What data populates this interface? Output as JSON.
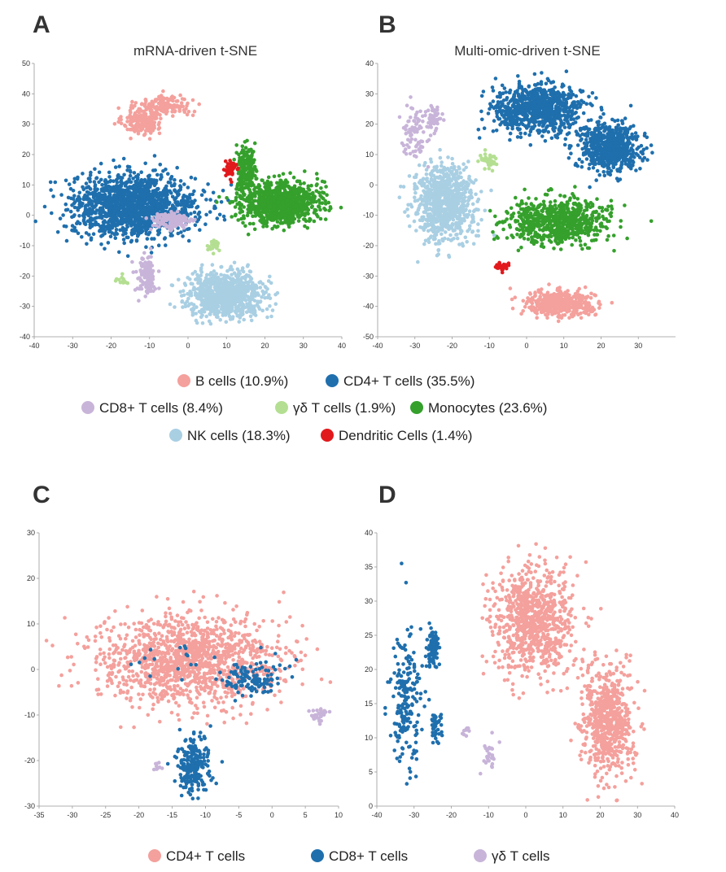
{
  "legend_top": [
    {
      "label": "B cells (10.9%)",
      "color": "#f4a09c"
    },
    {
      "label": "CD4+ T cells (35.5%)",
      "color": "#1f6fad"
    },
    {
      "label": "CD8+ T cells  (8.4%)",
      "color": "#c8b4d9"
    },
    {
      "label": "γδ T cells (1.9%)",
      "color": "#b4df92"
    },
    {
      "label": "Monocytes (23.6%)",
      "color": "#35a02c"
    },
    {
      "label": "NK cells (18.3%)",
      "color": "#a9cfe3"
    },
    {
      "label": "Dendritic Cells (1.4%)",
      "color": "#e2191c"
    }
  ],
  "legend_bottom": [
    {
      "label": "CD4+ T cells",
      "color": "#f4a09c"
    },
    {
      "label": "CD8+ T cells",
      "color": "#1f6fad"
    },
    {
      "label": "γδ T cells",
      "color": "#c8b4d9"
    }
  ],
  "chart_data": [
    {
      "panel": "A",
      "title": "mRNA-driven t-SNE",
      "type": "scatter",
      "xlim": [
        -40,
        40
      ],
      "ylim": [
        -40,
        50
      ],
      "xticks": [
        -40,
        -30,
        -20,
        -10,
        0,
        10,
        20,
        30,
        40
      ],
      "yticks": [
        -40,
        -30,
        -20,
        -10,
        0,
        10,
        20,
        30,
        40,
        50
      ],
      "clusters": [
        {
          "name": "B cells (10.9%)",
          "color": "#f4a09c",
          "n": 180,
          "cx": -12,
          "cy": 31,
          "sx": 2.5,
          "sy": 2.2
        },
        {
          "name": "B cells (10.9%)",
          "color": "#f4a09c",
          "n": 150,
          "cx": -6,
          "cy": 36,
          "sx": 3.5,
          "sy": 1.8
        },
        {
          "name": "CD4+ T cells (35.5%)",
          "color": "#1f6fad",
          "n": 1500,
          "cx": -14,
          "cy": 3,
          "sx": 8,
          "sy": 5
        },
        {
          "name": "CD8+ T cells  (8.4%)",
          "color": "#c8b4d9",
          "n": 120,
          "cx": -4,
          "cy": -2,
          "sx": 3,
          "sy": 1.5
        },
        {
          "name": "CD8+ T cells  (8.4%)",
          "color": "#c8b4d9",
          "n": 120,
          "cx": -11,
          "cy": -20,
          "sx": 1.3,
          "sy": 3.5
        },
        {
          "name": "γδ T cells (1.9%)",
          "color": "#b4df92",
          "n": 25,
          "cx": 7,
          "cy": -10,
          "sx": 0.8,
          "sy": 0.8
        },
        {
          "name": "γδ T cells (1.9%)",
          "color": "#b4df92",
          "n": 12,
          "cx": -17,
          "cy": -21,
          "sx": 0.6,
          "sy": 0.6
        },
        {
          "name": "Monocytes (23.6%)",
          "color": "#35a02c",
          "n": 900,
          "cx": 24,
          "cy": 4,
          "sx": 5,
          "sy": 3.5
        },
        {
          "name": "Monocytes (23.6%)",
          "color": "#35a02c",
          "n": 200,
          "cx": 15,
          "cy": 15,
          "sx": 1.2,
          "sy": 4
        },
        {
          "name": "NK cells (18.3%)",
          "color": "#a9cfe3",
          "n": 900,
          "cx": 10,
          "cy": -26,
          "sx": 5,
          "sy": 3.5
        },
        {
          "name": "Dendritic Cells (1.4%)",
          "color": "#e2191c",
          "n": 40,
          "cx": 11,
          "cy": 15,
          "sx": 0.8,
          "sy": 1.2
        }
      ]
    },
    {
      "panel": "B",
      "title": "Multi-omic-driven t-SNE",
      "type": "scatter",
      "xlim": [
        -40,
        40
      ],
      "ylim": [
        -50,
        40
      ],
      "xticks": [
        -40,
        -30,
        -20,
        -10,
        0,
        10,
        20,
        30
      ],
      "yticks": [
        -50,
        -40,
        -30,
        -20,
        -10,
        0,
        10,
        20,
        30,
        40
      ],
      "clusters": [
        {
          "name": "B cells (10.9%)",
          "color": "#f4a09c",
          "n": 450,
          "cx": 9,
          "cy": -39,
          "sx": 4.5,
          "sy": 2
        },
        {
          "name": "CD4+ T cells (35.5%)",
          "color": "#1f6fad",
          "n": 800,
          "cx": 3,
          "cy": 25,
          "sx": 6,
          "sy": 4
        },
        {
          "name": "CD4+ T cells (35.5%)",
          "color": "#1f6fad",
          "n": 650,
          "cx": 22,
          "cy": 12,
          "sx": 4,
          "sy": 4
        },
        {
          "name": "CD8+ T cells  (8.4%)",
          "color": "#c8b4d9",
          "n": 80,
          "cx": -30,
          "cy": 17,
          "sx": 2,
          "sy": 4
        },
        {
          "name": "CD8+ T cells  (8.4%)",
          "color": "#c8b4d9",
          "n": 50,
          "cx": -25,
          "cy": 22,
          "sx": 1,
          "sy": 2
        },
        {
          "name": "γδ T cells (1.9%)",
          "color": "#b4df92",
          "n": 40,
          "cx": -10,
          "cy": 8,
          "sx": 1.2,
          "sy": 1.5
        },
        {
          "name": "Monocytes (23.6%)",
          "color": "#35a02c",
          "n": 700,
          "cx": 8,
          "cy": -12,
          "sx": 7,
          "sy": 3.5
        },
        {
          "name": "NK cells (18.3%)",
          "color": "#a9cfe3",
          "n": 800,
          "cx": -22,
          "cy": -6,
          "sx": 4,
          "sy": 6
        },
        {
          "name": "Dendritic Cells (1.4%)",
          "color": "#e2191c",
          "n": 35,
          "cx": -7,
          "cy": -27,
          "sx": 0.9,
          "sy": 0.8
        }
      ]
    },
    {
      "panel": "C",
      "type": "scatter",
      "xlim": [
        -35,
        10
      ],
      "ylim": [
        -30,
        30
      ],
      "xticks": [
        -35,
        -30,
        -25,
        -20,
        -15,
        -10,
        -5,
        0,
        5,
        10
      ],
      "yticks": [
        -30,
        -20,
        -10,
        0,
        10,
        20,
        30
      ],
      "clusters": [
        {
          "name": "CD4+ T cells",
          "color": "#f4a09c",
          "n": 1300,
          "cx": -13,
          "cy": 2,
          "sx": 7,
          "sy": 5
        },
        {
          "name": "CD8+ T cells",
          "color": "#1f6fad",
          "n": 120,
          "cx": -3,
          "cy": -2,
          "sx": 2.5,
          "sy": 1.8
        },
        {
          "name": "CD8+ T cells",
          "color": "#1f6fad",
          "n": 220,
          "cx": -12,
          "cy": -21,
          "sx": 1.2,
          "sy": 3.5
        },
        {
          "name": "CD8+ T cells",
          "color": "#1f6fad",
          "n": 20,
          "cx": -15,
          "cy": 2,
          "sx": 6,
          "sy": 3
        },
        {
          "name": "γδ T cells",
          "color": "#c8b4d9",
          "n": 30,
          "cx": 7,
          "cy": -10,
          "sx": 0.7,
          "sy": 0.7
        },
        {
          "name": "γδ T cells",
          "color": "#c8b4d9",
          "n": 10,
          "cx": -17,
          "cy": -21,
          "sx": 0.5,
          "sy": 0.5
        }
      ]
    },
    {
      "panel": "D",
      "type": "scatter",
      "xlim": [
        -40,
        40
      ],
      "ylim": [
        0,
        40
      ],
      "xticks": [
        -40,
        -30,
        -20,
        -10,
        0,
        10,
        20,
        30,
        40
      ],
      "yticks": [
        0,
        5,
        10,
        15,
        20,
        25,
        30,
        35,
        40
      ],
      "clusters": [
        {
          "name": "CD4+ T cells",
          "color": "#f4a09c",
          "n": 800,
          "cx": 2,
          "cy": 27,
          "sx": 5.5,
          "sy": 4
        },
        {
          "name": "CD4+ T cells",
          "color": "#f4a09c",
          "n": 650,
          "cx": 22,
          "cy": 12,
          "sx": 3.5,
          "sy": 4
        },
        {
          "name": "CD8+ T cells",
          "color": "#1f6fad",
          "n": 200,
          "cx": -32,
          "cy": 16,
          "sx": 2,
          "sy": 5
        },
        {
          "name": "CD8+ T cells",
          "color": "#1f6fad",
          "n": 90,
          "cx": -25,
          "cy": 23,
          "sx": 0.8,
          "sy": 1.5
        },
        {
          "name": "CD8+ T cells",
          "color": "#1f6fad",
          "n": 40,
          "cx": -24,
          "cy": 12,
          "sx": 0.8,
          "sy": 1.2
        },
        {
          "name": "γδ T cells",
          "color": "#c8b4d9",
          "n": 30,
          "cx": -10,
          "cy": 7,
          "sx": 0.9,
          "sy": 1.2
        },
        {
          "name": "γδ T cells",
          "color": "#c8b4d9",
          "n": 10,
          "cx": -16,
          "cy": 11,
          "sx": 0.5,
          "sy": 0.5
        }
      ]
    }
  ]
}
